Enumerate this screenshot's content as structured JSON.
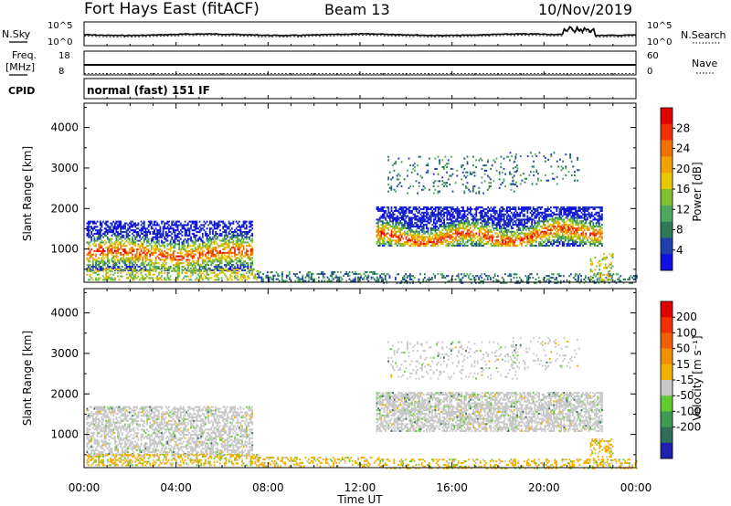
{
  "header": {
    "station": "Fort Hays East (fitACF)",
    "beam": "Beam 13",
    "date": "10/Nov/2019"
  },
  "summary_panels": {
    "nsky_label": "N.Sky",
    "nsky_ticks": [
      "10^5",
      "10^0"
    ],
    "nsearch_label": "N.Search",
    "nsearch_ticks": [
      "10^5",
      "10^0"
    ],
    "freq_label_1": "Freq.",
    "freq_label_2": "[MHz]",
    "freq_ticks": [
      "18",
      "8"
    ],
    "nave_label": "Nave",
    "nave_ticks": [
      "60",
      "0"
    ],
    "cpid_label": "CPID",
    "cpid_text": "normal (fast) 151 IF"
  },
  "chart_data": [
    {
      "type": "heatmap",
      "name": "power",
      "ylabel": "Slant Range [km]",
      "yticks": [
        "4000",
        "3000",
        "2000",
        "1000"
      ],
      "ylim": [
        180,
        4600
      ],
      "xlim_hours": [
        0,
        24
      ],
      "colorbar_label": "Power [dB]",
      "colorbar_ticks": [
        "28",
        "24",
        "20",
        "16",
        "12",
        "8",
        "4"
      ],
      "colorbar_range": [
        0,
        32
      ],
      "colors": [
        "#1010e0",
        "#2040b0",
        "#2e7a58",
        "#4ea860",
        "#80c030",
        "#e8c800",
        "#f0a000",
        "#f07000",
        "#f03000",
        "#e00000"
      ]
    },
    {
      "type": "heatmap",
      "name": "velocity",
      "ylabel": "Slant Range [km]",
      "yticks": [
        "4000",
        "3000",
        "2000",
        "1000"
      ],
      "ylim": [
        180,
        4600
      ],
      "xlim_hours": [
        0,
        24
      ],
      "colorbar_label": "Velocity [m s⁻¹]",
      "colorbar_ticks": [
        "200",
        "100",
        "50",
        "15",
        "-15",
        "-50",
        "-100",
        "-200"
      ],
      "colors": [
        "#2020b0",
        "#2e6e5a",
        "#3f9a52",
        "#60cc30",
        "#c8c8c8",
        "#f0b000",
        "#f09000",
        "#f06000",
        "#f03000",
        "#e00000"
      ]
    }
  ],
  "xaxis": {
    "ticks": [
      "00:00",
      "04:00",
      "08:00",
      "12:00",
      "16:00",
      "20:00",
      "00:00"
    ],
    "label": "Time UT"
  }
}
